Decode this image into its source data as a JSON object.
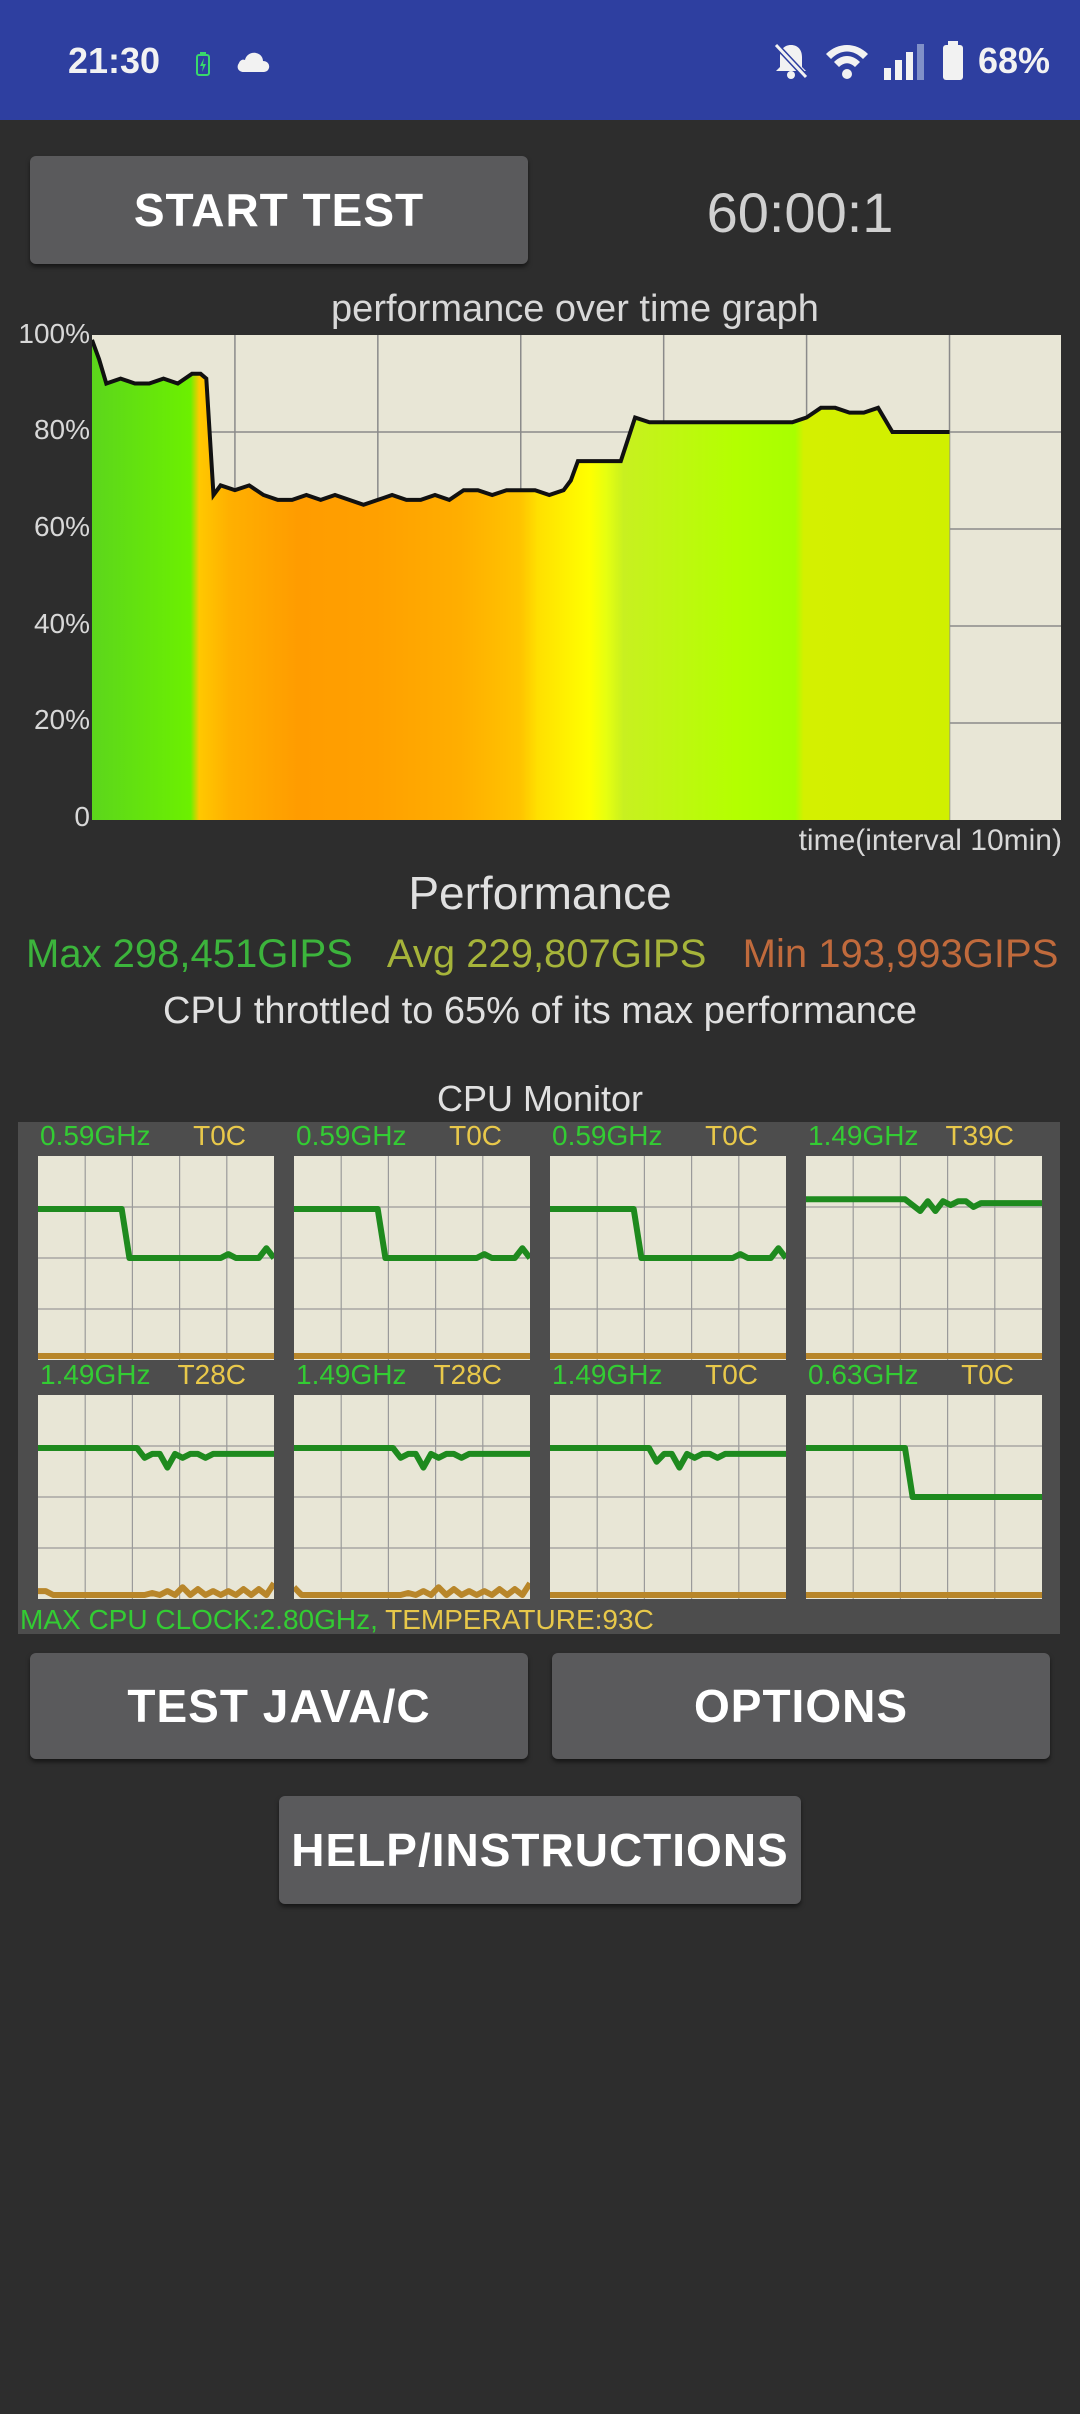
{
  "status_bar": {
    "time": "21:30",
    "battery": "68%",
    "icons": [
      "battery-charging-icon",
      "cloud-icon",
      "bell-off-icon",
      "wifi-icon",
      "signal-icon",
      "battery-icon"
    ]
  },
  "controls": {
    "start_label": "START TEST",
    "timer": "60:00:1"
  },
  "graph": {
    "title": "performance over time graph",
    "xlabel": "time(interval 10min)",
    "y_ticks": [
      "100%",
      "80%",
      "60%",
      "40%",
      "20%",
      "0"
    ]
  },
  "chart_data": {
    "type": "area",
    "title": "performance over time graph",
    "xlabel": "time(interval 10min)",
    "ylabel": "",
    "ylim": [
      0,
      100
    ],
    "y_ticks": [
      "0",
      "20%",
      "40%",
      "60%",
      "80%",
      "100%"
    ],
    "x_range_minutes": [
      0,
      60
    ],
    "grid": true,
    "series": [
      {
        "x": [
          0,
          0.5,
          1,
          2,
          3,
          4,
          5,
          6,
          7,
          7.6,
          8,
          8.5,
          9,
          10,
          11,
          12,
          13,
          14,
          15,
          16,
          17,
          18,
          19,
          20,
          21,
          22,
          23,
          24,
          25,
          26,
          27,
          28,
          29,
          30,
          31,
          32,
          33,
          33.5,
          34,
          35,
          36,
          37,
          38,
          39,
          40,
          41,
          42,
          43,
          44,
          45,
          46,
          47,
          48,
          49,
          50,
          51,
          52,
          53,
          54,
          55,
          56,
          57,
          58,
          59,
          60
        ],
        "values": [
          99,
          95,
          90,
          91,
          90,
          90,
          91,
          90,
          92,
          92,
          91,
          67,
          69,
          68,
          69,
          67,
          66,
          66,
          67,
          66,
          67,
          66,
          65,
          66,
          67,
          66,
          66,
          67,
          66,
          68,
          68,
          67,
          68,
          68,
          68,
          67,
          68,
          70,
          74,
          74,
          74,
          74,
          83,
          82,
          82,
          82,
          82,
          82,
          82,
          82,
          82,
          82,
          82,
          82,
          83,
          85,
          85,
          84,
          84,
          85,
          80,
          80,
          80,
          80,
          80
        ]
      }
    ]
  },
  "performance": {
    "title": "Performance",
    "max": "Max 298,451GIPS",
    "avg": "Avg 229,807GIPS",
    "min": "Min 193,993GIPS",
    "throttle_text": "CPU throttled to 65% of its max performance",
    "colors": {
      "max": "#3cb43c",
      "avg": "#a6b43a",
      "min": "#c06a3c"
    }
  },
  "cpu_monitor": {
    "title": "CPU Monitor",
    "cores": [
      {
        "freq": "0.59GHz",
        "temp": "T0C",
        "freq_trace": [
          75,
          75,
          75,
          75,
          75,
          75,
          75,
          75,
          75,
          75,
          75,
          75,
          50,
          50,
          50,
          50,
          50,
          50,
          50,
          50,
          50,
          50,
          50,
          50,
          50,
          52,
          50,
          50,
          50,
          50,
          55,
          50
        ]
      },
      {
        "freq": "0.59GHz",
        "temp": "T0C",
        "freq_trace": [
          75,
          75,
          75,
          75,
          75,
          75,
          75,
          75,
          75,
          75,
          75,
          75,
          50,
          50,
          50,
          50,
          50,
          50,
          50,
          50,
          50,
          50,
          50,
          50,
          50,
          52,
          50,
          50,
          50,
          50,
          55,
          50
        ]
      },
      {
        "freq": "0.59GHz",
        "temp": "T0C",
        "freq_trace": [
          75,
          75,
          75,
          75,
          75,
          75,
          75,
          75,
          75,
          75,
          75,
          75,
          50,
          50,
          50,
          50,
          50,
          50,
          50,
          50,
          50,
          50,
          50,
          50,
          50,
          52,
          50,
          50,
          50,
          50,
          55,
          50
        ]
      },
      {
        "freq": "1.49GHz",
        "temp": "T39C",
        "freq_trace": [
          80,
          80,
          80,
          80,
          80,
          80,
          80,
          80,
          80,
          80,
          80,
          80,
          80,
          80,
          77,
          74,
          79,
          74,
          79,
          77,
          79,
          79,
          76,
          78,
          78,
          78,
          78,
          78,
          78,
          78,
          78,
          78
        ]
      },
      {
        "freq": "1.49GHz",
        "temp": "T28C",
        "freq_trace": [
          75,
          75,
          75,
          75,
          75,
          75,
          75,
          75,
          75,
          75,
          75,
          75,
          75,
          75,
          70,
          72,
          72,
          65,
          72,
          70,
          72,
          72,
          70,
          72,
          72,
          72,
          72,
          72,
          72,
          72,
          72,
          72
        ]
      },
      {
        "freq": "1.49GHz",
        "temp": "T28C",
        "freq_trace": [
          75,
          75,
          75,
          75,
          75,
          75,
          75,
          75,
          75,
          75,
          75,
          75,
          75,
          75,
          70,
          72,
          72,
          65,
          72,
          70,
          72,
          72,
          70,
          72,
          72,
          72,
          72,
          72,
          72,
          72,
          72,
          72
        ]
      },
      {
        "freq": "1.49GHz",
        "temp": "T0C",
        "freq_trace": [
          75,
          75,
          75,
          75,
          75,
          75,
          75,
          75,
          75,
          75,
          75,
          75,
          75,
          75,
          68,
          72,
          72,
          65,
          72,
          70,
          72,
          72,
          70,
          72,
          72,
          72,
          72,
          72,
          72,
          72,
          72,
          72
        ]
      },
      {
        "freq": "0.63GHz",
        "temp": "T0C",
        "freq_trace": [
          75,
          75,
          75,
          75,
          75,
          75,
          75,
          75,
          75,
          75,
          75,
          75,
          75,
          75,
          50,
          50,
          50,
          50,
          50,
          50,
          50,
          50,
          50,
          50,
          50,
          50,
          50,
          50,
          50,
          50,
          50,
          50
        ]
      }
    ],
    "temp_traces": [
      null,
      null,
      null,
      [
        0,
        0,
        0,
        0,
        0,
        0,
        0,
        0,
        0,
        0,
        0,
        0,
        0,
        0,
        0,
        0,
        0,
        0,
        0,
        0,
        0,
        0,
        0,
        0,
        0,
        0,
        0,
        0,
        0,
        0,
        0,
        0
      ],
      [
        2,
        2,
        0,
        0,
        0,
        0,
        0,
        0,
        0,
        0,
        0,
        0,
        0,
        0,
        0,
        1,
        0,
        2,
        0,
        4,
        0,
        3,
        0,
        2,
        0,
        2,
        0,
        3,
        0,
        3,
        0,
        6
      ],
      [
        4,
        0,
        0,
        0,
        0,
        0,
        0,
        0,
        0,
        0,
        0,
        0,
        0,
        0,
        0,
        1,
        0,
        2,
        0,
        4,
        0,
        3,
        0,
        2,
        0,
        2,
        0,
        3,
        0,
        3,
        0,
        6
      ],
      null,
      null
    ],
    "footer_clock": "MAX CPU CLOCK:2.80GHz,",
    "footer_temp": "TEMPERATURE:93C",
    "colors": {
      "freq": "#1e8a1e",
      "temp": "#b8862a",
      "plot_bg": "#e8e6d6"
    }
  },
  "buttons": {
    "test_java_c": "TEST JAVA/C",
    "options": "OPTIONS",
    "help": "HELP/INSTRUCTIONS"
  }
}
